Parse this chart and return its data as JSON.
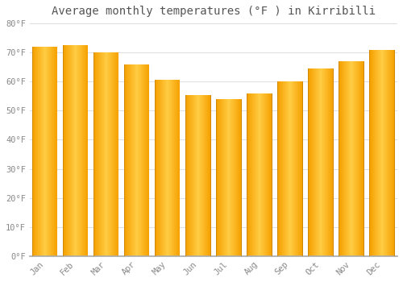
{
  "title": "Average monthly temperatures (°F ) in Kirribilli",
  "months": [
    "Jan",
    "Feb",
    "Mar",
    "Apr",
    "May",
    "Jun",
    "Jul",
    "Aug",
    "Sep",
    "Oct",
    "Nov",
    "Dec"
  ],
  "values": [
    72,
    72.5,
    70,
    66,
    60.5,
    55.5,
    54,
    56,
    60,
    64.5,
    67,
    71
  ],
  "bar_color_center": "#FFCC44",
  "bar_color_edge": "#F5A000",
  "background_color": "#FFFFFF",
  "plot_bg_color": "#FFFFFF",
  "grid_color": "#E0E0E0",
  "text_color": "#888888",
  "title_color": "#555555",
  "spine_color": "#AAAAAA",
  "ylim": [
    0,
    80
  ],
  "yticks": [
    0,
    10,
    20,
    30,
    40,
    50,
    60,
    70,
    80
  ],
  "ytick_labels": [
    "0°F",
    "10°F",
    "20°F",
    "30°F",
    "40°F",
    "50°F",
    "60°F",
    "70°F",
    "80°F"
  ],
  "bar_width": 0.82,
  "gradient_steps": 40
}
